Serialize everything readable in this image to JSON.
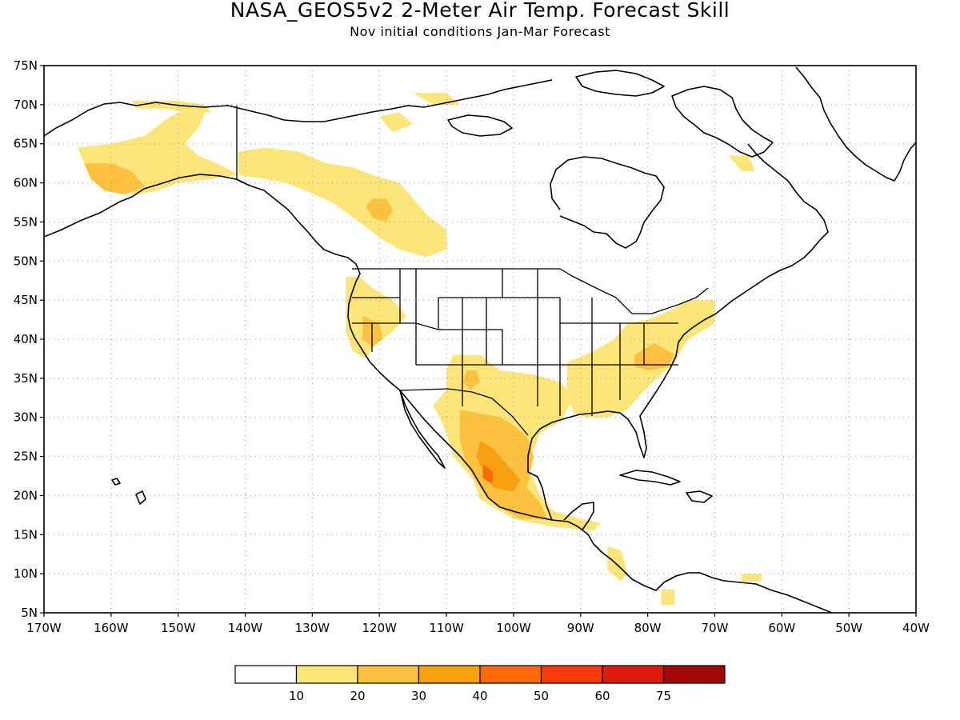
{
  "title": "NASA_GEOS5v2 2-Meter Air Temp. Forecast Skill",
  "subtitle": "Nov initial conditions  Jan-Mar Forecast",
  "map": {
    "lon_range": [
      -170,
      -40
    ],
    "lat_range": [
      5,
      75
    ],
    "lon_ticks": [
      {
        "v": -170,
        "label": "170W"
      },
      {
        "v": -160,
        "label": "160W"
      },
      {
        "v": -150,
        "label": "150W"
      },
      {
        "v": -140,
        "label": "140W"
      },
      {
        "v": -130,
        "label": "130W"
      },
      {
        "v": -120,
        "label": "120W"
      },
      {
        "v": -110,
        "label": "110W"
      },
      {
        "v": -100,
        "label": "100W"
      },
      {
        "v": -90,
        "label": "90W"
      },
      {
        "v": -80,
        "label": "80W"
      },
      {
        "v": -70,
        "label": "70W"
      },
      {
        "v": -60,
        "label": "60W"
      },
      {
        "v": -50,
        "label": "50W"
      },
      {
        "v": -40,
        "label": "40W"
      }
    ],
    "lat_ticks": [
      {
        "v": 75,
        "label": "75N"
      },
      {
        "v": 70,
        "label": "70N"
      },
      {
        "v": 65,
        "label": "65N"
      },
      {
        "v": 60,
        "label": "60N"
      },
      {
        "v": 55,
        "label": "55N"
      },
      {
        "v": 50,
        "label": "50N"
      },
      {
        "v": 45,
        "label": "45N"
      },
      {
        "v": 40,
        "label": "40N"
      },
      {
        "v": 35,
        "label": "35N"
      },
      {
        "v": 30,
        "label": "30N"
      },
      {
        "v": 25,
        "label": "25N"
      },
      {
        "v": 20,
        "label": "20N"
      },
      {
        "v": 15,
        "label": "15N"
      },
      {
        "v": 10,
        "label": "10N"
      },
      {
        "v": 5,
        "label": "5N"
      }
    ],
    "grid": true
  },
  "colorbar": {
    "colors": [
      "#ffffff",
      "#fde57a",
      "#fbc13f",
      "#f9a010",
      "#fb6b0a",
      "#fb3b09",
      "#dd1b0d",
      "#a10808"
    ],
    "labels": [
      "10",
      "20",
      "30",
      "40",
      "50",
      "60",
      "75"
    ]
  },
  "skill_regions": [
    {
      "level": 1,
      "name": "alaska-west",
      "pts": [
        [
          -165,
          64.5
        ],
        [
          -160,
          65
        ],
        [
          -155,
          66
        ],
        [
          -152,
          68
        ],
        [
          -150,
          69
        ],
        [
          -146,
          69
        ],
        [
          -147,
          67
        ],
        [
          -149,
          65
        ],
        [
          -147,
          63.5
        ],
        [
          -143,
          62
        ],
        [
          -141,
          61
        ],
        [
          -145,
          60.5
        ],
        [
          -150,
          60
        ],
        [
          -153,
          59
        ],
        [
          -156,
          58.5
        ],
        [
          -161,
          59
        ],
        [
          -163,
          60.5
        ],
        [
          -164,
          62.5
        ]
      ]
    },
    {
      "level": 1,
      "name": "alaska-north",
      "pts": [
        [
          -157,
          70.5
        ],
        [
          -150,
          70.5
        ],
        [
          -146,
          70
        ],
        [
          -145,
          69
        ],
        [
          -149,
          69
        ],
        [
          -152,
          69.5
        ],
        [
          -156,
          69.5
        ]
      ]
    },
    {
      "level": 1,
      "name": "canada-nw",
      "pts": [
        [
          -141,
          64
        ],
        [
          -137,
          64.5
        ],
        [
          -132,
          64
        ],
        [
          -128,
          62.5
        ],
        [
          -124,
          62
        ],
        [
          -121,
          61
        ],
        [
          -117,
          60
        ],
        [
          -115,
          58
        ],
        [
          -113,
          56
        ],
        [
          -110,
          54
        ],
        [
          -110,
          51.5
        ],
        [
          -113,
          50.5
        ],
        [
          -117,
          51.5
        ],
        [
          -120,
          53
        ],
        [
          -123,
          55
        ],
        [
          -127,
          57.5
        ],
        [
          -131,
          59
        ],
        [
          -134,
          60
        ],
        [
          -137,
          60.5
        ],
        [
          -141,
          61
        ]
      ]
    },
    {
      "level": 1,
      "name": "nunavut",
      "pts": [
        [
          -120,
          68.5
        ],
        [
          -117,
          69
        ],
        [
          -115,
          67.5
        ],
        [
          -118,
          66.5
        ]
      ]
    },
    {
      "level": 1,
      "name": "arctic-islands",
      "pts": [
        [
          -115,
          71.5
        ],
        [
          -110,
          71.5
        ],
        [
          -108,
          70
        ],
        [
          -112,
          70
        ]
      ]
    },
    {
      "level": 1,
      "name": "baffin",
      "pts": [
        [
          -68,
          63.5
        ],
        [
          -65,
          63.5
        ],
        [
          -64,
          61.5
        ],
        [
          -66,
          61.5
        ]
      ]
    },
    {
      "level": 1,
      "name": "pacific-nw",
      "pts": [
        [
          -125,
          48
        ],
        [
          -123,
          48
        ],
        [
          -121,
          46.5
        ],
        [
          -118,
          45
        ],
        [
          -116,
          43
        ],
        [
          -118,
          41
        ],
        [
          -121,
          39
        ],
        [
          -122,
          37.5
        ],
        [
          -124,
          38.5
        ],
        [
          -125,
          41
        ],
        [
          -125,
          44
        ],
        [
          -125,
          46.5
        ]
      ]
    },
    {
      "level": 1,
      "name": "southwest-us",
      "pts": [
        [
          -109,
          38
        ],
        [
          -105,
          38
        ],
        [
          -102,
          36
        ],
        [
          -97,
          35.5
        ],
        [
          -93,
          34.5
        ],
        [
          -91,
          32.5
        ],
        [
          -93,
          29.5
        ],
        [
          -96,
          28
        ],
        [
          -97,
          26
        ],
        [
          -98,
          24
        ],
        [
          -96,
          20
        ],
        [
          -94,
          18
        ],
        [
          -90,
          17
        ],
        [
          -87,
          16.5
        ],
        [
          -88,
          15.5
        ],
        [
          -94,
          16
        ],
        [
          -100,
          17
        ],
        [
          -105,
          19.5
        ],
        [
          -106,
          22
        ],
        [
          -109,
          25
        ],
        [
          -110,
          28
        ],
        [
          -111,
          30
        ],
        [
          -112,
          31.5
        ],
        [
          -110,
          33.5
        ],
        [
          -110,
          36
        ]
      ]
    },
    {
      "level": 1,
      "name": "southeast-us",
      "pts": [
        [
          -92,
          37
        ],
        [
          -88,
          38.5
        ],
        [
          -85,
          40
        ],
        [
          -83,
          42
        ],
        [
          -80,
          42.5
        ],
        [
          -77,
          43.5
        ],
        [
          -74,
          45
        ],
        [
          -70,
          45
        ],
        [
          -70,
          42
        ],
        [
          -74,
          40
        ],
        [
          -76,
          37
        ],
        [
          -78,
          35.5
        ],
        [
          -81,
          33
        ],
        [
          -83,
          31
        ],
        [
          -86,
          30
        ],
        [
          -89,
          30
        ],
        [
          -91,
          30.5
        ],
        [
          -92,
          33
        ]
      ]
    },
    {
      "level": 1,
      "name": "central-america",
      "pts": [
        [
          -86,
          13.5
        ],
        [
          -84,
          13
        ],
        [
          -83,
          10
        ],
        [
          -84,
          9
        ],
        [
          -86,
          10.5
        ]
      ]
    },
    {
      "level": 1,
      "name": "colombia",
      "pts": [
        [
          -78,
          8
        ],
        [
          -76,
          8
        ],
        [
          -76,
          6
        ],
        [
          -78,
          6
        ]
      ]
    },
    {
      "level": 1,
      "name": "venezuela",
      "pts": [
        [
          -66,
          10
        ],
        [
          -63,
          10
        ],
        [
          -63,
          9
        ],
        [
          -66,
          9
        ]
      ]
    },
    {
      "level": 2,
      "name": "alaska-sw",
      "pts": [
        [
          -164,
          62.5
        ],
        [
          -160,
          62.5
        ],
        [
          -157,
          61.5
        ],
        [
          -155,
          59.5
        ],
        [
          -158,
          58.5
        ],
        [
          -161,
          59
        ],
        [
          -163,
          60.5
        ]
      ]
    },
    {
      "level": 2,
      "name": "bc-interior",
      "pts": [
        [
          -121,
          58
        ],
        [
          -119,
          58
        ],
        [
          -118,
          56.5
        ],
        [
          -119,
          55
        ],
        [
          -121,
          55.5
        ],
        [
          -122,
          57
        ]
      ]
    },
    {
      "level": 2,
      "name": "california",
      "pts": [
        [
          -122.5,
          43
        ],
        [
          -120,
          42
        ],
        [
          -119.5,
          40
        ],
        [
          -121,
          39
        ],
        [
          -122.5,
          40
        ]
      ]
    },
    {
      "level": 2,
      "name": "new-mexico",
      "pts": [
        [
          -107,
          36
        ],
        [
          -105.5,
          36
        ],
        [
          -105,
          34.5
        ],
        [
          -106.5,
          33.5
        ],
        [
          -107.5,
          34.5
        ]
      ]
    },
    {
      "level": 2,
      "name": "mexico-north",
      "pts": [
        [
          -108,
          31
        ],
        [
          -105,
          30.5
        ],
        [
          -102,
          30
        ],
        [
          -100,
          29
        ],
        [
          -98,
          27.5
        ],
        [
          -97,
          25
        ],
        [
          -98,
          21
        ],
        [
          -96,
          19
        ],
        [
          -95,
          17
        ],
        [
          -99,
          17
        ],
        [
          -103,
          19
        ],
        [
          -105,
          21
        ],
        [
          -107,
          24
        ],
        [
          -108,
          27
        ]
      ]
    },
    {
      "level": 2,
      "name": "virginia",
      "pts": [
        [
          -82,
          38
        ],
        [
          -79,
          39.5
        ],
        [
          -76,
          38
        ],
        [
          -77,
          36.5
        ],
        [
          -80,
          36
        ],
        [
          -82,
          36.5
        ]
      ]
    },
    {
      "level": 3,
      "name": "mexico-core",
      "pts": [
        [
          -105,
          27
        ],
        [
          -103,
          26
        ],
        [
          -101,
          24
        ],
        [
          -99,
          22
        ],
        [
          -100,
          20.5
        ],
        [
          -103,
          21
        ],
        [
          -104.5,
          23
        ],
        [
          -105.5,
          25
        ]
      ]
    },
    {
      "level": 4,
      "name": "mexico-peak",
      "pts": [
        [
          -104.5,
          24
        ],
        [
          -103,
          23
        ],
        [
          -103.2,
          21.5
        ],
        [
          -104.6,
          22.2
        ]
      ]
    }
  ]
}
